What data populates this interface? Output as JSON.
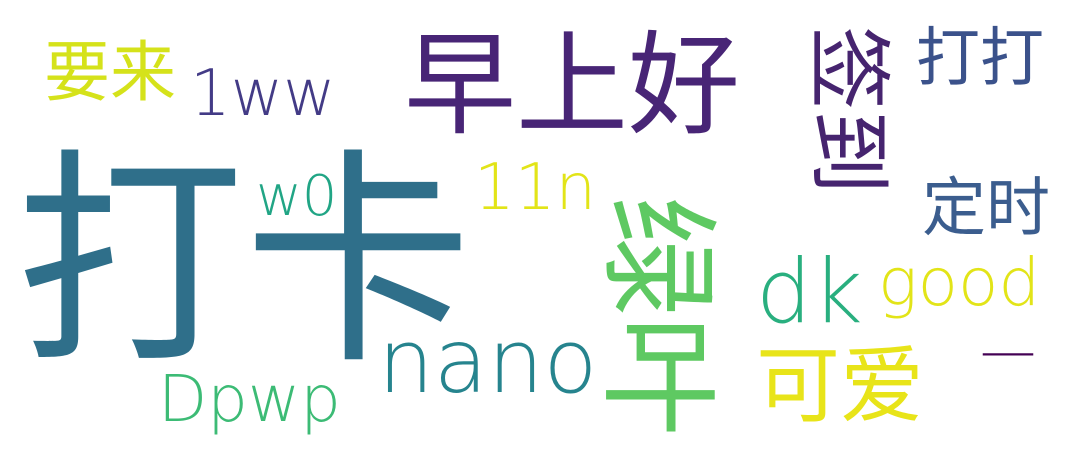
{
  "words": [
    {
      "text": "打卡",
      "color": "#2f6f8a"
    },
    {
      "text": "早上好",
      "color": "#482576"
    },
    {
      "text": "签到",
      "color": "#46246f"
    },
    {
      "text": "打打",
      "color": "#3b528b"
    },
    {
      "text": "要来",
      "color": "#d5e21a"
    },
    {
      "text": "1ww",
      "color": "#433b86"
    },
    {
      "text": "w0",
      "color": "#21a585"
    },
    {
      "text": "11n",
      "color": "#e2e418"
    },
    {
      "text": "定时",
      "color": "#3b5d8e"
    },
    {
      "text": "绿叶",
      "color": "#5ec962"
    },
    {
      "text": "dk",
      "color": "#29af7f"
    },
    {
      "text": "good",
      "color": "#e2e418"
    },
    {
      "text": "nano",
      "color": "#26848e"
    },
    {
      "text": "Dpwp",
      "color": "#3cbb75"
    },
    {
      "text": "可爱",
      "color": "#e8e419"
    },
    {
      "text": "—",
      "color": "#440154"
    }
  ]
}
